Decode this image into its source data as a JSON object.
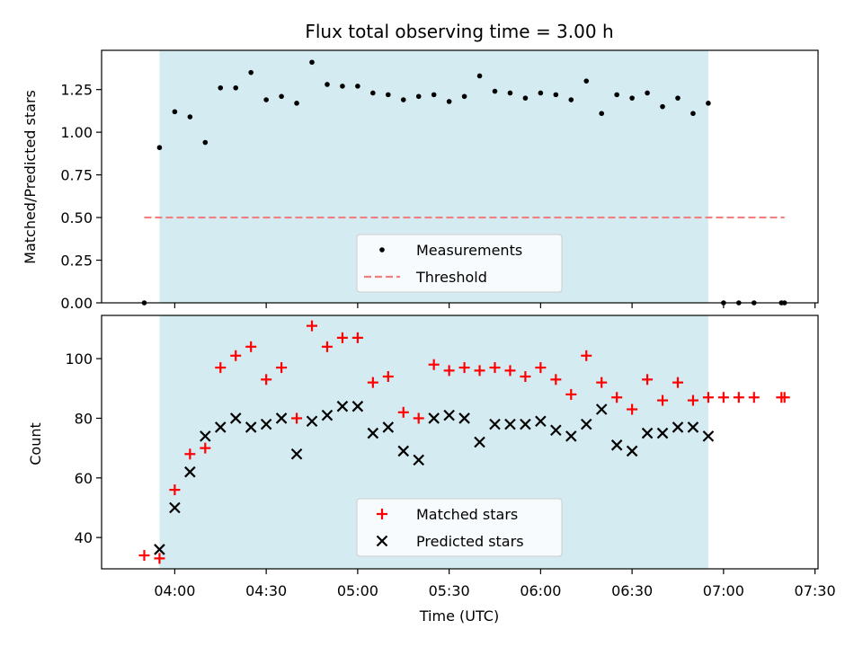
{
  "chart_data": [
    {
      "type": "scatter",
      "title": "Flux total observing time = 3.00 h",
      "xlabel": "",
      "ylabel": "Matched/Predicted stars",
      "xlim": [
        "03:36",
        "07:31"
      ],
      "ylim": [
        0,
        1.48
      ],
      "yticks": [
        "0.00",
        "0.25",
        "0.50",
        "0.75",
        "1.00",
        "1.25"
      ],
      "shaded_span": [
        "03:55",
        "06:55"
      ],
      "legend": "lower center",
      "series": [
        {
          "name": "Measurements",
          "marker": "dot",
          "color": "#000000",
          "points": [
            [
              "03:50",
              0.0
            ],
            [
              "03:55",
              0.91
            ],
            [
              "04:00",
              1.12
            ],
            [
              "04:05",
              1.09
            ],
            [
              "04:10",
              0.94
            ],
            [
              "04:15",
              1.26
            ],
            [
              "04:20",
              1.26
            ],
            [
              "04:25",
              1.35
            ],
            [
              "04:30",
              1.19
            ],
            [
              "04:35",
              1.21
            ],
            [
              "04:40",
              1.17
            ],
            [
              "04:45",
              1.41
            ],
            [
              "04:50",
              1.28
            ],
            [
              "04:55",
              1.27
            ],
            [
              "05:00",
              1.27
            ],
            [
              "05:05",
              1.23
            ],
            [
              "05:10",
              1.22
            ],
            [
              "05:15",
              1.19
            ],
            [
              "05:20",
              1.21
            ],
            [
              "05:25",
              1.22
            ],
            [
              "05:30",
              1.18
            ],
            [
              "05:35",
              1.21
            ],
            [
              "05:40",
              1.33
            ],
            [
              "05:45",
              1.24
            ],
            [
              "05:50",
              1.23
            ],
            [
              "05:55",
              1.2
            ],
            [
              "06:00",
              1.23
            ],
            [
              "06:05",
              1.22
            ],
            [
              "06:10",
              1.19
            ],
            [
              "06:15",
              1.3
            ],
            [
              "06:20",
              1.11
            ],
            [
              "06:25",
              1.22
            ],
            [
              "06:30",
              1.2
            ],
            [
              "06:35",
              1.23
            ],
            [
              "06:40",
              1.15
            ],
            [
              "06:45",
              1.2
            ],
            [
              "06:50",
              1.11
            ],
            [
              "06:55",
              1.17
            ],
            [
              "07:00",
              0.0
            ],
            [
              "07:05",
              0.0
            ],
            [
              "07:10",
              0.0
            ],
            [
              "07:19",
              0.0
            ],
            [
              "07:20",
              0.0
            ]
          ]
        },
        {
          "name": "Threshold",
          "style": "dashed",
          "color": "#f08080",
          "points": [
            [
              "03:50",
              0.5
            ],
            [
              "07:20",
              0.5
            ]
          ]
        }
      ]
    },
    {
      "type": "scatter",
      "title": "",
      "xlabel": "Time (UTC)",
      "ylabel": "Count",
      "xlim": [
        "03:36",
        "07:31"
      ],
      "ylim": [
        29.5,
        114.5
      ],
      "yticks": [
        "40",
        "60",
        "80",
        "100"
      ],
      "xticks": [
        "04:00",
        "04:30",
        "05:00",
        "05:30",
        "06:00",
        "06:30",
        "07:00",
        "07:30"
      ],
      "shaded_span": [
        "03:55",
        "06:55"
      ],
      "legend": "lower center",
      "series": [
        {
          "name": "Matched stars",
          "marker": "plus",
          "color": "#ff0000",
          "points": [
            [
              "03:50",
              34
            ],
            [
              "03:55",
              33
            ],
            [
              "04:00",
              56
            ],
            [
              "04:05",
              68
            ],
            [
              "04:10",
              70
            ],
            [
              "04:15",
              97
            ],
            [
              "04:20",
              101
            ],
            [
              "04:25",
              104
            ],
            [
              "04:30",
              93
            ],
            [
              "04:35",
              97
            ],
            [
              "04:40",
              80
            ],
            [
              "04:45",
              111
            ],
            [
              "04:50",
              104
            ],
            [
              "04:55",
              107
            ],
            [
              "05:00",
              107
            ],
            [
              "05:05",
              92
            ],
            [
              "05:10",
              94
            ],
            [
              "05:15",
              82
            ],
            [
              "05:20",
              80
            ],
            [
              "05:25",
              98
            ],
            [
              "05:30",
              96
            ],
            [
              "05:35",
              97
            ],
            [
              "05:40",
              96
            ],
            [
              "05:45",
              97
            ],
            [
              "05:50",
              96
            ],
            [
              "05:55",
              94
            ],
            [
              "06:00",
              97
            ],
            [
              "06:05",
              93
            ],
            [
              "06:10",
              88
            ],
            [
              "06:15",
              101
            ],
            [
              "06:20",
              92
            ],
            [
              "06:25",
              87
            ],
            [
              "06:30",
              83
            ],
            [
              "06:35",
              93
            ],
            [
              "06:40",
              86
            ],
            [
              "06:45",
              92
            ],
            [
              "06:50",
              86
            ],
            [
              "06:55",
              87
            ],
            [
              "07:00",
              87
            ],
            [
              "07:05",
              87
            ],
            [
              "07:10",
              87
            ],
            [
              "07:19",
              87
            ],
            [
              "07:20",
              87
            ]
          ]
        },
        {
          "name": "Predicted stars",
          "marker": "x",
          "color": "#000000",
          "points": [
            [
              "03:55",
              36
            ],
            [
              "04:00",
              50
            ],
            [
              "04:05",
              62
            ],
            [
              "04:10",
              74
            ],
            [
              "04:15",
              77
            ],
            [
              "04:20",
              80
            ],
            [
              "04:25",
              77
            ],
            [
              "04:30",
              78
            ],
            [
              "04:35",
              80
            ],
            [
              "04:40",
              68
            ],
            [
              "04:45",
              79
            ],
            [
              "04:50",
              81
            ],
            [
              "04:55",
              84
            ],
            [
              "05:00",
              84
            ],
            [
              "05:05",
              75
            ],
            [
              "05:10",
              77
            ],
            [
              "05:15",
              69
            ],
            [
              "05:20",
              66
            ],
            [
              "05:25",
              80
            ],
            [
              "05:30",
              81
            ],
            [
              "05:35",
              80
            ],
            [
              "05:40",
              72
            ],
            [
              "05:45",
              78
            ],
            [
              "05:50",
              78
            ],
            [
              "05:55",
              78
            ],
            [
              "06:00",
              79
            ],
            [
              "06:05",
              76
            ],
            [
              "06:10",
              74
            ],
            [
              "06:15",
              78
            ],
            [
              "06:20",
              83
            ],
            [
              "06:25",
              71
            ],
            [
              "06:30",
              69
            ],
            [
              "06:35",
              75
            ],
            [
              "06:40",
              75
            ],
            [
              "06:45",
              77
            ],
            [
              "06:50",
              77
            ],
            [
              "06:55",
              74
            ]
          ]
        }
      ]
    }
  ]
}
